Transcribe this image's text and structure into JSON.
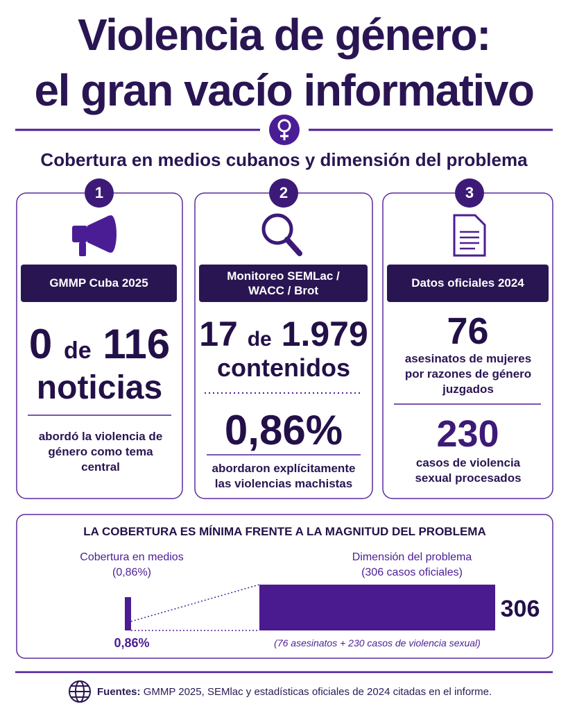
{
  "header": {
    "title_line1": "Violencia de género:",
    "title_line2": "el gran vacío informativo",
    "subtitle": "Cobertura en medios cubanos y dimensión del problema"
  },
  "cards": [
    {
      "number": "1",
      "label": "GMMP Cuba 2025",
      "stat_main": "0",
      "stat_of": "de",
      "stat_total": "116",
      "stat_unit": "noticias",
      "description": "abordó la violencia de género como tema central"
    },
    {
      "number": "2",
      "label": "Monitoreo SEMLac / WACC / Brot",
      "stat_main": "17",
      "stat_of": "de",
      "stat_total": "1.979",
      "stat_unit": "contenidos",
      "percent": "0,86%",
      "description": "abordaron explícitamente las violencias machistas"
    },
    {
      "number": "3",
      "label": "Datos oficiales 2024",
      "stat1": "76",
      "desc1": "asesinatos de mujeres por razones de género juzgados",
      "stat2": "230",
      "desc2": "casos de violencia sexual procesados"
    }
  ],
  "comparison": {
    "title": "LA COBERTURA ES MÍNIMA FRENTE A LA MAGNITUD DEL PROBLEMA",
    "left_label": "Cobertura en medios",
    "left_sub": "(0,86%)",
    "left_value": "0,86%",
    "right_label": "Dimensión del problema",
    "right_sub": "(306 casos oficiales)",
    "right_value": "306",
    "note": "(76 asesinatos + 230 casos de violencia sexual)"
  },
  "footer": {
    "label": "Fuentes:",
    "text": "GMMP 2025, SEMlac y estadísticas oficiales de 2024 citadas en el informe."
  }
}
